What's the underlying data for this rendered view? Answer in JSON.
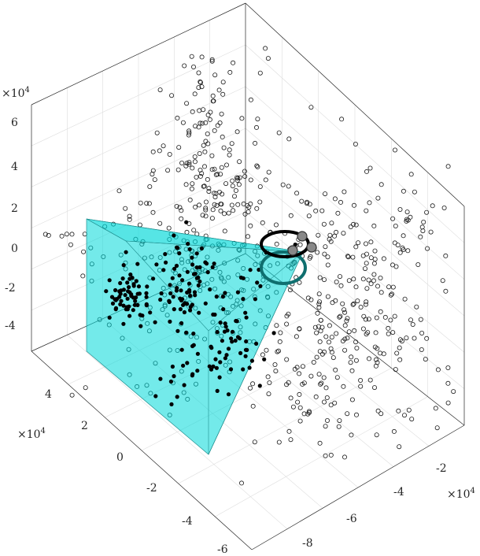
{
  "chart_data": {
    "type": "scatter",
    "title": "",
    "axes": {
      "x": {
        "exponent_label": "×10^4",
        "ticks": [
          -2,
          -4,
          -6,
          -8
        ],
        "range": [
          -9,
          -1
        ]
      },
      "y": {
        "exponent_label": "×10^4",
        "ticks": [
          4,
          2,
          0,
          -2,
          -4,
          -6
        ],
        "range": [
          -6.6,
          5.6
        ]
      },
      "z": {
        "exponent_label": "×10^4",
        "ticks": [
          6,
          4,
          2,
          0,
          -2,
          -4
        ],
        "range": [
          -5,
          7
        ]
      }
    },
    "grid": true,
    "series": [
      {
        "marker": "open-circle",
        "color": "#000000",
        "note_count": 620
      },
      {
        "marker": "filled-circle",
        "color": "#000000",
        "note_count": 210
      }
    ],
    "frustum": {
      "color": "#00d8d8",
      "opacity": 0.55
    },
    "camera_rings": {
      "colors": [
        "#000000",
        "#0f6f6f"
      ]
    }
  }
}
